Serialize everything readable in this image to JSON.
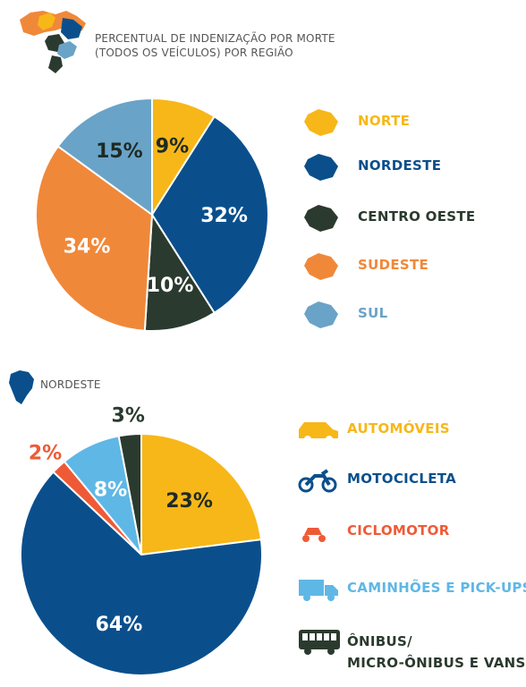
{
  "colors": {
    "norte": "#f7b718",
    "nordeste": "#0a4f8c",
    "centro_oeste": "#2b3a2e",
    "sudeste": "#f0883a",
    "sul": "#6aa3c8",
    "automoveis": "#f7b718",
    "motocicleta": "#0a4f8c",
    "ciclomotor": "#ef5a36",
    "caminhoes": "#5fb7e6",
    "onibus": "#2b3a2e"
  },
  "section1": {
    "title_line1": "PERCENTUAL DE INDENIZAÇÃO POR MORTE",
    "title_line2": "(TODOS OS VEÍCULOS) POR REGIÃO",
    "icon": "brazil-map-icon"
  },
  "section2": {
    "title": "NORDESTE",
    "icon": "nordeste-map-icon"
  },
  "chart_data": [
    {
      "type": "pie",
      "categories": [
        "NORTE",
        "NORDESTE",
        "CENTRO OESTE",
        "SUDESTE",
        "SUL"
      ],
      "values": [
        9,
        32,
        10,
        34,
        15
      ],
      "labels": [
        "9%",
        "32%",
        "10%",
        "34%",
        "15%"
      ],
      "colors": [
        "#f7b718",
        "#0a4f8c",
        "#2b3a2e",
        "#f0883a",
        "#6aa3c8"
      ],
      "label_colors": [
        "#1f2a24",
        "#ffffff",
        "#ffffff",
        "#ffffff",
        "#1f2a24"
      ],
      "legend_text_colors": [
        "#f7b718",
        "#0a4f8c",
        "#2b3a2e",
        "#f0883a",
        "#6aa3c8"
      ],
      "legend_icons": [
        "norte-map-icon",
        "nordeste-map-icon",
        "centro-oeste-map-icon",
        "sudeste-map-icon",
        "sul-map-icon"
      ],
      "legend": "right",
      "title": "PERCENTUAL DE INDENIZAÇÃO POR MORTE (TODOS OS VEÍCULOS) POR REGIÃO"
    },
    {
      "type": "pie",
      "categories": [
        "AUTOMÓVEIS",
        "MOTOCICLETA",
        "CICLOMOTOR",
        "CAMINHÕES E PICK-UPS",
        "ÔNIBUS/ MICRO-ÔNIBUS E VANS"
      ],
      "legend_lines": [
        [
          "AUTOMÓVEIS"
        ],
        [
          "MOTOCICLETA"
        ],
        [
          "CICLOMOTOR"
        ],
        [
          "CAMINHÕES E PICK-UPS"
        ],
        [
          "ÔNIBUS/",
          "MICRO-ÔNIBUS E VANS"
        ]
      ],
      "values": [
        23,
        64,
        2,
        8,
        3
      ],
      "labels": [
        "23%",
        "64%",
        "2%",
        "8%",
        "3%"
      ],
      "colors": [
        "#f7b718",
        "#0a4f8c",
        "#ef5a36",
        "#5fb7e6",
        "#2b3a2e"
      ],
      "label_colors": [
        "#1f2a24",
        "#ffffff",
        "#ef5a36",
        "#ffffff",
        "#2b3a2e"
      ],
      "label_outside": [
        false,
        false,
        true,
        false,
        true
      ],
      "legend_text_colors": [
        "#f7b718",
        "#0a4f8c",
        "#ef5a36",
        "#5fb7e6",
        "#2b3a2e"
      ],
      "legend_icons": [
        "car-icon",
        "motorcycle-icon",
        "scooter-icon",
        "truck-icon",
        "bus-icon"
      ],
      "legend": "right",
      "title": "NORDESTE"
    }
  ]
}
